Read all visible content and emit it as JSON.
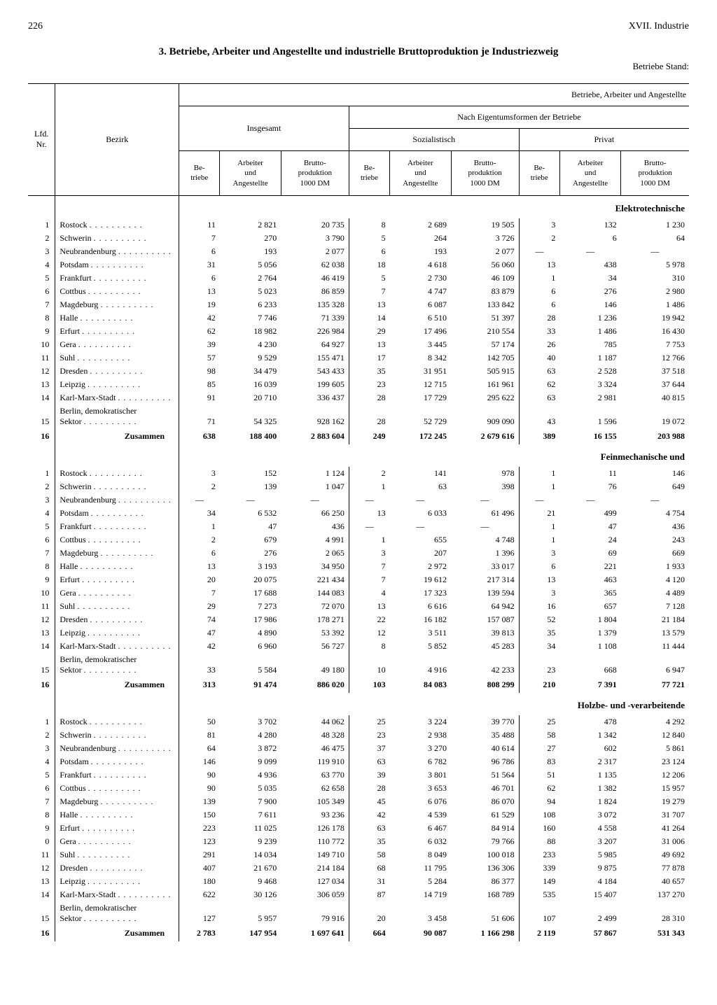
{
  "page": {
    "number": "226",
    "chapter": "XVII. Industrie",
    "title": "3. Betriebe, Arbeiter und Angestellte und industrielle Bruttoproduktion je Industriezweig",
    "subtitle": "Betriebe Stand:"
  },
  "headers": {
    "top_right": "Betriebe, Arbeiter und Angestellte",
    "lfd_nr": "Lfd.\nNr.",
    "bezirk": "Bezirk",
    "insgesamt": "Insgesamt",
    "nach_eigen": "Nach Eigentumsformen der Betriebe",
    "sozialistisch": "Sozialistisch",
    "privat": "Privat",
    "betriebe": "Be-\ntriebe",
    "arbeiter": "Arbeiter\nund\nAngestellte",
    "brutto": "Brutto-\nproduktion\n1000 DM"
  },
  "sections": [
    {
      "label": "Elektrotechnische",
      "rows": [
        {
          "nr": "1",
          "bezirk": "Rostock",
          "v": [
            "11",
            "2 821",
            "20 735",
            "8",
            "2 689",
            "19 505",
            "3",
            "132",
            "1 230"
          ]
        },
        {
          "nr": "2",
          "bezirk": "Schwerin",
          "v": [
            "7",
            "270",
            "3 790",
            "5",
            "264",
            "3 726",
            "2",
            "6",
            "64"
          ]
        },
        {
          "nr": "3",
          "bezirk": "Neubrandenburg",
          "v": [
            "6",
            "193",
            "2 077",
            "6",
            "193",
            "2 077",
            "—",
            "—",
            "—"
          ]
        },
        {
          "nr": "4",
          "bezirk": "Potsdam",
          "v": [
            "31",
            "5 056",
            "62 038",
            "18",
            "4 618",
            "56 060",
            "13",
            "438",
            "5 978"
          ]
        },
        {
          "nr": "5",
          "bezirk": "Frankfurt",
          "v": [
            "6",
            "2 764",
            "46 419",
            "5",
            "2 730",
            "46 109",
            "1",
            "34",
            "310"
          ]
        },
        {
          "nr": "6",
          "bezirk": "Cottbus",
          "v": [
            "13",
            "5 023",
            "86 859",
            "7",
            "4 747",
            "83 879",
            "6",
            "276",
            "2 980"
          ]
        },
        {
          "nr": "7",
          "bezirk": "Magdeburg",
          "v": [
            "19",
            "6 233",
            "135 328",
            "13",
            "6 087",
            "133 842",
            "6",
            "146",
            "1 486"
          ]
        },
        {
          "nr": "8",
          "bezirk": "Halle",
          "v": [
            "42",
            "7 746",
            "71 339",
            "14",
            "6 510",
            "51 397",
            "28",
            "1 236",
            "19 942"
          ]
        },
        {
          "nr": "9",
          "bezirk": "Erfurt",
          "v": [
            "62",
            "18 982",
            "226 984",
            "29",
            "17 496",
            "210 554",
            "33",
            "1 486",
            "16 430"
          ]
        },
        {
          "nr": "10",
          "bezirk": "Gera",
          "v": [
            "39",
            "4 230",
            "64 927",
            "13",
            "3 445",
            "57 174",
            "26",
            "785",
            "7 753"
          ]
        },
        {
          "nr": "11",
          "bezirk": "Suhl",
          "v": [
            "57",
            "9 529",
            "155 471",
            "17",
            "8 342",
            "142 705",
            "40",
            "1 187",
            "12 766"
          ]
        },
        {
          "nr": "12",
          "bezirk": "Dresden",
          "v": [
            "98",
            "34 479",
            "543 433",
            "35",
            "31 951",
            "505 915",
            "63",
            "2 528",
            "37 518"
          ]
        },
        {
          "nr": "13",
          "bezirk": "Leipzig",
          "v": [
            "85",
            "16 039",
            "199 605",
            "23",
            "12 715",
            "161 961",
            "62",
            "3 324",
            "37 644"
          ]
        },
        {
          "nr": "14",
          "bezirk": "Karl-Marx-Stadt",
          "v": [
            "91",
            "20 710",
            "336 437",
            "28",
            "17 729",
            "295 622",
            "63",
            "2 981",
            "40 815"
          ]
        },
        {
          "nr": "15",
          "bezirk": "Berlin, demokratischer Sektor",
          "berlin": true,
          "v": [
            "71",
            "54 325",
            "928 162",
            "28",
            "52 729",
            "909 090",
            "43",
            "1 596",
            "19 072"
          ]
        }
      ],
      "sum": {
        "nr": "16",
        "bezirk": "Zusammen",
        "v": [
          "638",
          "188 400",
          "2 883 604",
          "249",
          "172 245",
          "2 679 616",
          "389",
          "16 155",
          "203 988"
        ]
      }
    },
    {
      "label": "Feinmechanische und",
      "rows": [
        {
          "nr": "1",
          "bezirk": "Rostock",
          "v": [
            "3",
            "152",
            "1 124",
            "2",
            "141",
            "978",
            "1",
            "11",
            "146"
          ]
        },
        {
          "nr": "2",
          "bezirk": "Schwerin",
          "v": [
            "2",
            "139",
            "1 047",
            "1",
            "63",
            "398",
            "1",
            "76",
            "649"
          ]
        },
        {
          "nr": "3",
          "bezirk": "Neubrandenburg",
          "v": [
            "—",
            "—",
            "—",
            "—",
            "—",
            "—",
            "—",
            "—",
            "—"
          ]
        },
        {
          "nr": "4",
          "bezirk": "Potsdam",
          "v": [
            "34",
            "6 532",
            "66 250",
            "13",
            "6 033",
            "61 496",
            "21",
            "499",
            "4 754"
          ]
        },
        {
          "nr": "5",
          "bezirk": "Frankfurt",
          "v": [
            "1",
            "47",
            "436",
            "—",
            "—",
            "—",
            "1",
            "47",
            "436"
          ]
        },
        {
          "nr": "6",
          "bezirk": "Cottbus",
          "v": [
            "2",
            "679",
            "4 991",
            "1",
            "655",
            "4 748",
            "1",
            "24",
            "243"
          ]
        },
        {
          "nr": "7",
          "bezirk": "Magdeburg",
          "v": [
            "6",
            "276",
            "2 065",
            "3",
            "207",
            "1 396",
            "3",
            "69",
            "669"
          ]
        },
        {
          "nr": "8",
          "bezirk": "Halle",
          "v": [
            "13",
            "3 193",
            "34 950",
            "7",
            "2 972",
            "33 017",
            "6",
            "221",
            "1 933"
          ]
        },
        {
          "nr": "9",
          "bezirk": "Erfurt",
          "v": [
            "20",
            "20 075",
            "221 434",
            "7",
            "19 612",
            "217 314",
            "13",
            "463",
            "4 120"
          ]
        },
        {
          "nr": "10",
          "bezirk": "Gera",
          "v": [
            "7",
            "17 688",
            "144 083",
            "4",
            "17 323",
            "139 594",
            "3",
            "365",
            "4 489"
          ]
        },
        {
          "nr": "11",
          "bezirk": "Suhl",
          "v": [
            "29",
            "7 273",
            "72 070",
            "13",
            "6 616",
            "64 942",
            "16",
            "657",
            "7 128"
          ]
        },
        {
          "nr": "12",
          "bezirk": "Dresden",
          "v": [
            "74",
            "17 986",
            "178 271",
            "22",
            "16 182",
            "157 087",
            "52",
            "1 804",
            "21 184"
          ]
        },
        {
          "nr": "13",
          "bezirk": "Leipzig",
          "v": [
            "47",
            "4 890",
            "53 392",
            "12",
            "3 511",
            "39 813",
            "35",
            "1 379",
            "13 579"
          ]
        },
        {
          "nr": "14",
          "bezirk": "Karl-Marx-Stadt",
          "v": [
            "42",
            "6 960",
            "56 727",
            "8",
            "5 852",
            "45 283",
            "34",
            "1 108",
            "11 444"
          ]
        },
        {
          "nr": "15",
          "bezirk": "Berlin, demokratischer Sektor",
          "berlin": true,
          "v": [
            "33",
            "5 584",
            "49 180",
            "10",
            "4 916",
            "42 233",
            "23",
            "668",
            "6 947"
          ]
        }
      ],
      "sum": {
        "nr": "16",
        "bezirk": "Zusammen",
        "v": [
          "313",
          "91 474",
          "886 020",
          "103",
          "84 083",
          "808 299",
          "210",
          "7 391",
          "77 721"
        ]
      }
    },
    {
      "label": "Holzbe- und -verarbeitende",
      "rows": [
        {
          "nr": "1",
          "bezirk": "Rostock",
          "v": [
            "50",
            "3 702",
            "44 062",
            "25",
            "3 224",
            "39 770",
            "25",
            "478",
            "4 292"
          ]
        },
        {
          "nr": "2",
          "bezirk": "Schwerin",
          "v": [
            "81",
            "4 280",
            "48 328",
            "23",
            "2 938",
            "35 488",
            "58",
            "1 342",
            "12 840"
          ]
        },
        {
          "nr": "3",
          "bezirk": "Neubrandenburg",
          "v": [
            "64",
            "3 872",
            "46 475",
            "37",
            "3 270",
            "40 614",
            "27",
            "602",
            "5 861"
          ]
        },
        {
          "nr": "4",
          "bezirk": "Potsdam",
          "v": [
            "146",
            "9 099",
            "119 910",
            "63",
            "6 782",
            "96 786",
            "83",
            "2 317",
            "23 124"
          ]
        },
        {
          "nr": "5",
          "bezirk": "Frankfurt",
          "v": [
            "90",
            "4 936",
            "63 770",
            "39",
            "3 801",
            "51 564",
            "51",
            "1 135",
            "12 206"
          ]
        },
        {
          "nr": "6",
          "bezirk": "Cottbus",
          "v": [
            "90",
            "5 035",
            "62 658",
            "28",
            "3 653",
            "46 701",
            "62",
            "1 382",
            "15 957"
          ]
        },
        {
          "nr": "7",
          "bezirk": "Magdeburg",
          "v": [
            "139",
            "7 900",
            "105 349",
            "45",
            "6 076",
            "86 070",
            "94",
            "1 824",
            "19 279"
          ]
        },
        {
          "nr": "8",
          "bezirk": "Halle",
          "v": [
            "150",
            "7 611",
            "93 236",
            "42",
            "4 539",
            "61 529",
            "108",
            "3 072",
            "31 707"
          ]
        },
        {
          "nr": "9",
          "bezirk": "Erfurt",
          "v": [
            "223",
            "11 025",
            "126 178",
            "63",
            "6 467",
            "84 914",
            "160",
            "4 558",
            "41 264"
          ]
        },
        {
          "nr": "0",
          "bezirk": "Gera",
          "v": [
            "123",
            "9 239",
            "110 772",
            "35",
            "6 032",
            "79 766",
            "88",
            "3 207",
            "31 006"
          ]
        },
        {
          "nr": "11",
          "bezirk": "Suhl",
          "v": [
            "291",
            "14 034",
            "149 710",
            "58",
            "8 049",
            "100 018",
            "233",
            "5 985",
            "49 692"
          ]
        },
        {
          "nr": "12",
          "bezirk": "Dresden",
          "v": [
            "407",
            "21 670",
            "214 184",
            "68",
            "11 795",
            "136 306",
            "339",
            "9 875",
            "77 878"
          ]
        },
        {
          "nr": "13",
          "bezirk": "Leipzig",
          "v": [
            "180",
            "9 468",
            "127 034",
            "31",
            "5 284",
            "86 377",
            "149",
            "4 184",
            "40 657"
          ]
        },
        {
          "nr": "14",
          "bezirk": "Karl-Marx-Stadt",
          "v": [
            "622",
            "30 126",
            "306 059",
            "87",
            "14 719",
            "168 789",
            "535",
            "15 407",
            "137 270"
          ]
        },
        {
          "nr": "15",
          "bezirk": "Berlin, demokratischer Sektor",
          "berlin": true,
          "v": [
            "127",
            "5 957",
            "79 916",
            "20",
            "3 458",
            "51 606",
            "107",
            "2 499",
            "28 310"
          ]
        }
      ],
      "sum": {
        "nr": "16",
        "bezirk": "Zusammen",
        "v": [
          "2 783",
          "147 954",
          "1 697 641",
          "664",
          "90 087",
          "1 166 298",
          "2 119",
          "57 867",
          "531 343"
        ]
      }
    }
  ]
}
